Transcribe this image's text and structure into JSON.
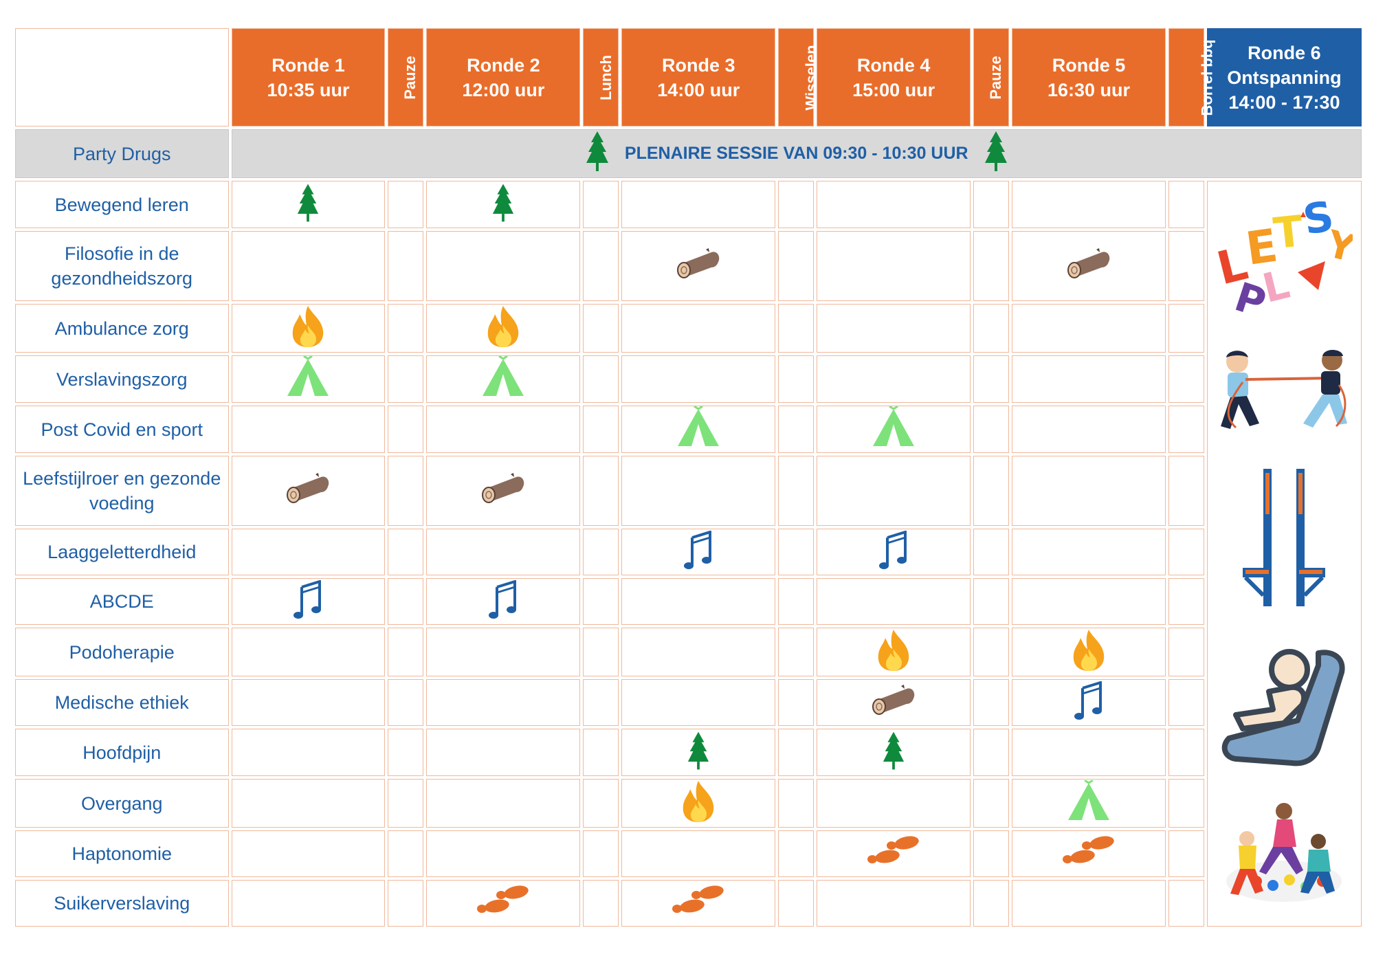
{
  "header": {
    "ronde1": {
      "title": "Ronde 1",
      "time": "10:35 uur"
    },
    "pauze1": "Pauze",
    "ronde2": {
      "title": "Ronde 2",
      "time": "12:00 uur"
    },
    "lunch": "Lunch",
    "ronde3": {
      "title": "Ronde 3",
      "time": "14:00 uur"
    },
    "wisselen": "Wisselen",
    "ronde4": {
      "title": "Ronde 4",
      "time": "15:00 uur"
    },
    "pauze2": "Pauze",
    "ronde5": {
      "title": "Ronde 5",
      "time": "16:30 uur"
    },
    "borrel": "Borrel bbq",
    "ronde6": {
      "title": "Ronde 6",
      "subtitle": "Ontspanning",
      "time": "14:00 - 17:30"
    }
  },
  "plenary": {
    "topic": "Party Drugs",
    "text": "PLENAIRE SESSIE VAN 09:30 - 10:30 UUR",
    "icon": "tree-icon"
  },
  "topics": [
    {
      "name": "Bewegend leren",
      "r1": "tree",
      "r2": "tree",
      "r3": "",
      "r4": "",
      "r5": ""
    },
    {
      "name": "Filosofie in de gezondheidszorg",
      "r1": "",
      "r2": "",
      "r3": "log",
      "r4": "",
      "r5": "log"
    },
    {
      "name": "Ambulance zorg",
      "r1": "fire",
      "r2": "fire",
      "r3": "",
      "r4": "",
      "r5": ""
    },
    {
      "name": "Verslavingszorg",
      "r1": "tent",
      "r2": "tent",
      "r3": "",
      "r4": "",
      "r5": ""
    },
    {
      "name": "Post Covid en sport",
      "r1": "",
      "r2": "",
      "r3": "tent",
      "r4": "tent",
      "r5": ""
    },
    {
      "name": "Leefstijlroer en gezonde voeding",
      "r1": "log",
      "r2": "log",
      "r3": "",
      "r4": "",
      "r5": ""
    },
    {
      "name": "Laaggeletterdheid",
      "r1": "",
      "r2": "",
      "r3": "music",
      "r4": "music",
      "r5": ""
    },
    {
      "name": "ABCDE",
      "r1": "music",
      "r2": "music",
      "r3": "",
      "r4": "",
      "r5": ""
    },
    {
      "name": "Podoherapie",
      "r1": "",
      "r2": "",
      "r3": "",
      "r4": "fire",
      "r5": "fire"
    },
    {
      "name": "Medische ethiek",
      "r1": "",
      "r2": "",
      "r3": "",
      "r4": "log",
      "r5": "music"
    },
    {
      "name": "Hoofdpijn",
      "r1": "",
      "r2": "",
      "r3": "tree",
      "r4": "tree",
      "r5": ""
    },
    {
      "name": "Overgang",
      "r1": "",
      "r2": "",
      "r3": "fire",
      "r4": "",
      "r5": "tent"
    },
    {
      "name": "Haptonomie",
      "r1": "",
      "r2": "",
      "r3": "",
      "r4": "footprints",
      "r5": "footprints"
    },
    {
      "name": "Suikerverslaving",
      "r1": "",
      "r2": "footprints",
      "r3": "footprints",
      "r4": "",
      "r5": ""
    }
  ],
  "ronde6_images": [
    {
      "icon": "lets-play-letters-icon",
      "text": "LET'S PLAY"
    },
    {
      "icon": "tug-of-war-icon"
    },
    {
      "icon": "stilts-icon"
    },
    {
      "icon": "seat-relaxation-icon"
    },
    {
      "icon": "twister-game-icon"
    }
  ],
  "colors": {
    "orange": "#e96d2a",
    "blue": "#1f5fa6",
    "grey": "#d9d9d9",
    "tree": "#0f8a3c",
    "tent": "#7ee27a",
    "fire": "#f6a21a",
    "log": "#8a6b5c",
    "music": "#1f5fa6",
    "footprints": "#e8712a"
  }
}
